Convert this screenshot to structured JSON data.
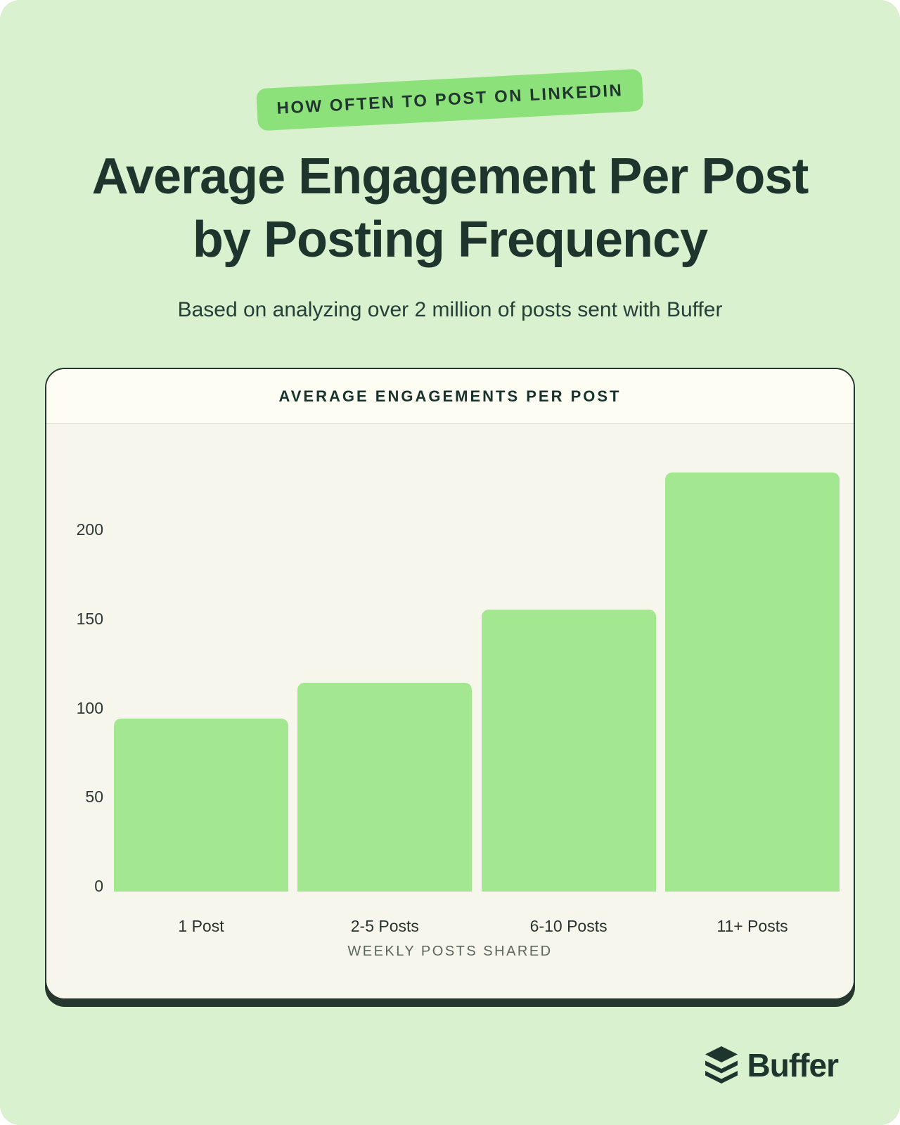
{
  "page": {
    "background_color": "#d9f1cf"
  },
  "badge": {
    "label": "HOW OFTEN TO POST ON LINKEDIN",
    "bg_color": "#8de17b",
    "text_color": "#21362e"
  },
  "title": {
    "line1": "Average Engagement Per Post",
    "line2": "by Posting Frequency",
    "color": "#1d352d"
  },
  "subtitle": "Based on analyzing over 2 million of posts sent with Buffer",
  "card": {
    "header_label": "AVERAGE ENGAGEMENTS PER POST",
    "header_bg": "#fdfdf4",
    "body_bg": "#f7f6ec",
    "border_color": "#27362f"
  },
  "chart_data": {
    "type": "bar",
    "title": "AVERAGE ENGAGEMENTS PER POST",
    "categories": [
      "1 Post",
      "2-5 Posts",
      "6-10 Posts",
      "11+ Posts"
    ],
    "values": [
      94,
      114,
      155,
      232
    ],
    "xlabel": "WEEKLY POSTS SHARED",
    "ylabel": "",
    "ylim": [
      0,
      250
    ],
    "yticks": [
      0,
      50,
      100,
      150,
      200
    ],
    "bar_color": "#a4e791",
    "grid": false,
    "legend": "none"
  },
  "footer": {
    "brand": "Buffer"
  }
}
